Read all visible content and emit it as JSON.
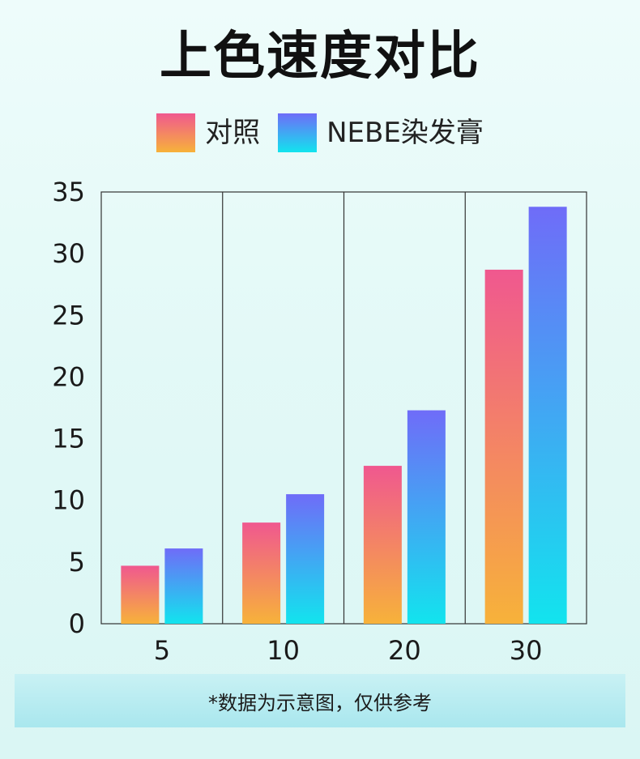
{
  "title": "上色速度对比",
  "legend": [
    {
      "label": "对照"
    },
    {
      "label": "NEBE染发膏"
    }
  ],
  "colors": {
    "series_a_top": "#f0588f",
    "series_a_bottom": "#f7b23a",
    "series_b_top": "#6f6cf8",
    "series_b_bottom": "#12e4ee",
    "axis": "#333333",
    "text": "#1a1a1a"
  },
  "chart_data": {
    "type": "bar",
    "categories": [
      "5",
      "10",
      "20",
      "30"
    ],
    "series": [
      {
        "name": "对照",
        "values": [
          4.7,
          8.2,
          12.8,
          28.7
        ]
      },
      {
        "name": "NEBE染发膏",
        "values": [
          6.1,
          10.5,
          17.3,
          33.8
        ]
      }
    ],
    "ylim": [
      0,
      35
    ],
    "yticks": [
      "0",
      "5",
      "10",
      "15",
      "20",
      "25",
      "30",
      "35"
    ],
    "xlabel": "",
    "ylabel": "",
    "grid": false,
    "legend_position": "top"
  },
  "note": "*数据为示意图，仅供参考"
}
